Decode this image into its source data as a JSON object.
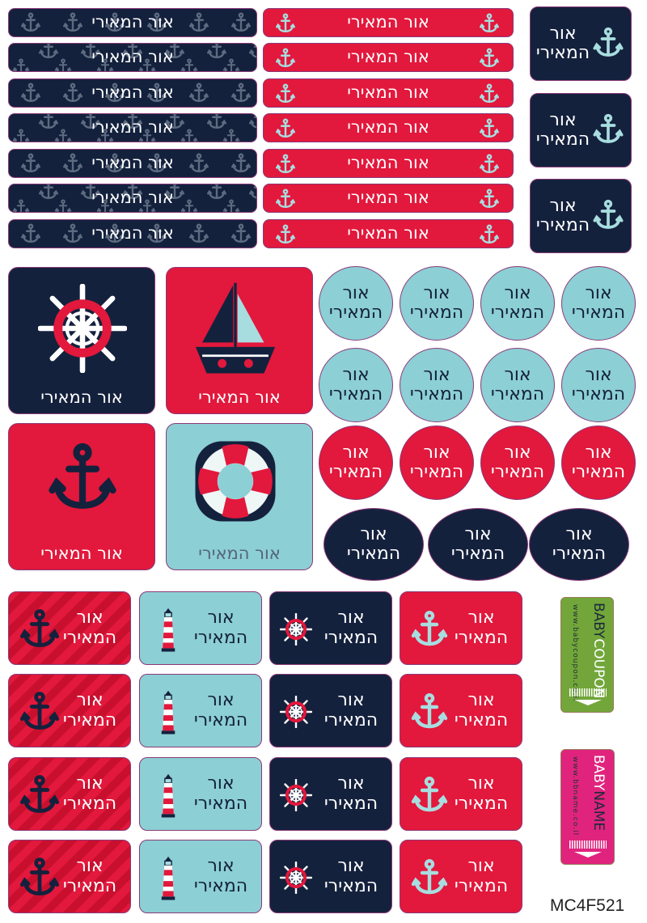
{
  "name": "אור המאירי",
  "colors": {
    "navy": "#14213d",
    "red": "#e2183c",
    "teal": "#8ccfd4",
    "anchor_light": "#a8dde0",
    "pattern_anchor": "#5d6b80",
    "coupon_green": "#72a63a",
    "name_pink": "#e0247e"
  },
  "icons": [
    "anchor-icon",
    "ship-wheel-icon",
    "sailboat-icon",
    "lifebuoy-icon",
    "lighthouse-icon"
  ],
  "tags": {
    "coupon": {
      "brand_a": "BABY",
      "brand_b": "COUPON",
      "url": "www.babycoupon.co.il"
    },
    "name": {
      "brand_a": "BABY",
      "brand_b": "NAME",
      "url": "www.bbname.co.il"
    }
  },
  "code": "MC4F521"
}
